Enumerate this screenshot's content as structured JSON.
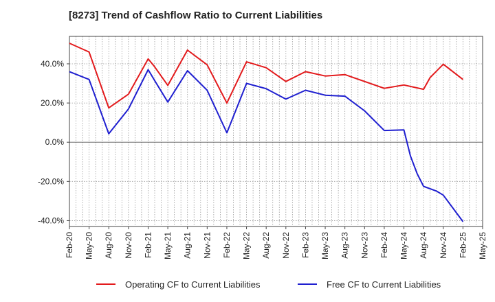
{
  "chart_data": {
    "type": "line",
    "title": "[8273]  Trend of Cashflow Ratio to Current Liabilities",
    "xlabel": "",
    "ylabel": "",
    "ylim": [
      -43,
      54
    ],
    "yticks": [
      "40.0%",
      "20.0%",
      "0.0%",
      "-20.0%",
      "-40.0%"
    ],
    "ytick_values": [
      40,
      20,
      0,
      -20,
      -40
    ],
    "categories": [
      "Feb-20",
      "May-20",
      "Aug-20",
      "Nov-20",
      "Feb-21",
      "May-21",
      "Aug-21",
      "Nov-21",
      "Feb-22",
      "May-22",
      "Aug-22",
      "Nov-22",
      "Feb-23",
      "May-23",
      "Aug-23",
      "Nov-23",
      "Feb-24",
      "May-24",
      "Aug-24",
      "Nov-24",
      "Feb-25",
      "May-25"
    ],
    "grid": true,
    "legend": "bottom",
    "series": [
      {
        "name": "Operating CF to Current Liabilities",
        "color": "#e31a1c",
        "x": [
          0,
          1,
          2,
          3,
          4,
          4.33,
          5,
          6,
          7,
          8,
          9,
          10,
          11,
          12,
          13,
          14,
          15,
          16,
          17,
          18,
          18.33,
          19,
          20
        ],
        "values": [
          50.5,
          46.0,
          17.5,
          24.5,
          42.5,
          38.5,
          29.0,
          47.0,
          39.5,
          20.0,
          41.0,
          38.0,
          31.0,
          36.0,
          33.8,
          34.5,
          31.0,
          27.5,
          29.2,
          27.0,
          33.0,
          39.8,
          32.0
        ]
      },
      {
        "name": "Free CF to Current Liabilities",
        "color": "#1f1fd0",
        "x": [
          0,
          1,
          2,
          3,
          4,
          4.33,
          5,
          6,
          7,
          8,
          9,
          10,
          11,
          12,
          13,
          14,
          15,
          16,
          17,
          17.33,
          17.67,
          18,
          18.67,
          19,
          20
        ],
        "values": [
          36.0,
          32.0,
          4.3,
          17.0,
          37.0,
          31.5,
          20.5,
          36.5,
          26.5,
          4.8,
          30.0,
          27.3,
          22.0,
          26.5,
          24.0,
          23.5,
          16.0,
          6.0,
          6.3,
          -7.0,
          -16.0,
          -22.5,
          -25.0,
          -27.0,
          -40.5
        ]
      }
    ]
  }
}
